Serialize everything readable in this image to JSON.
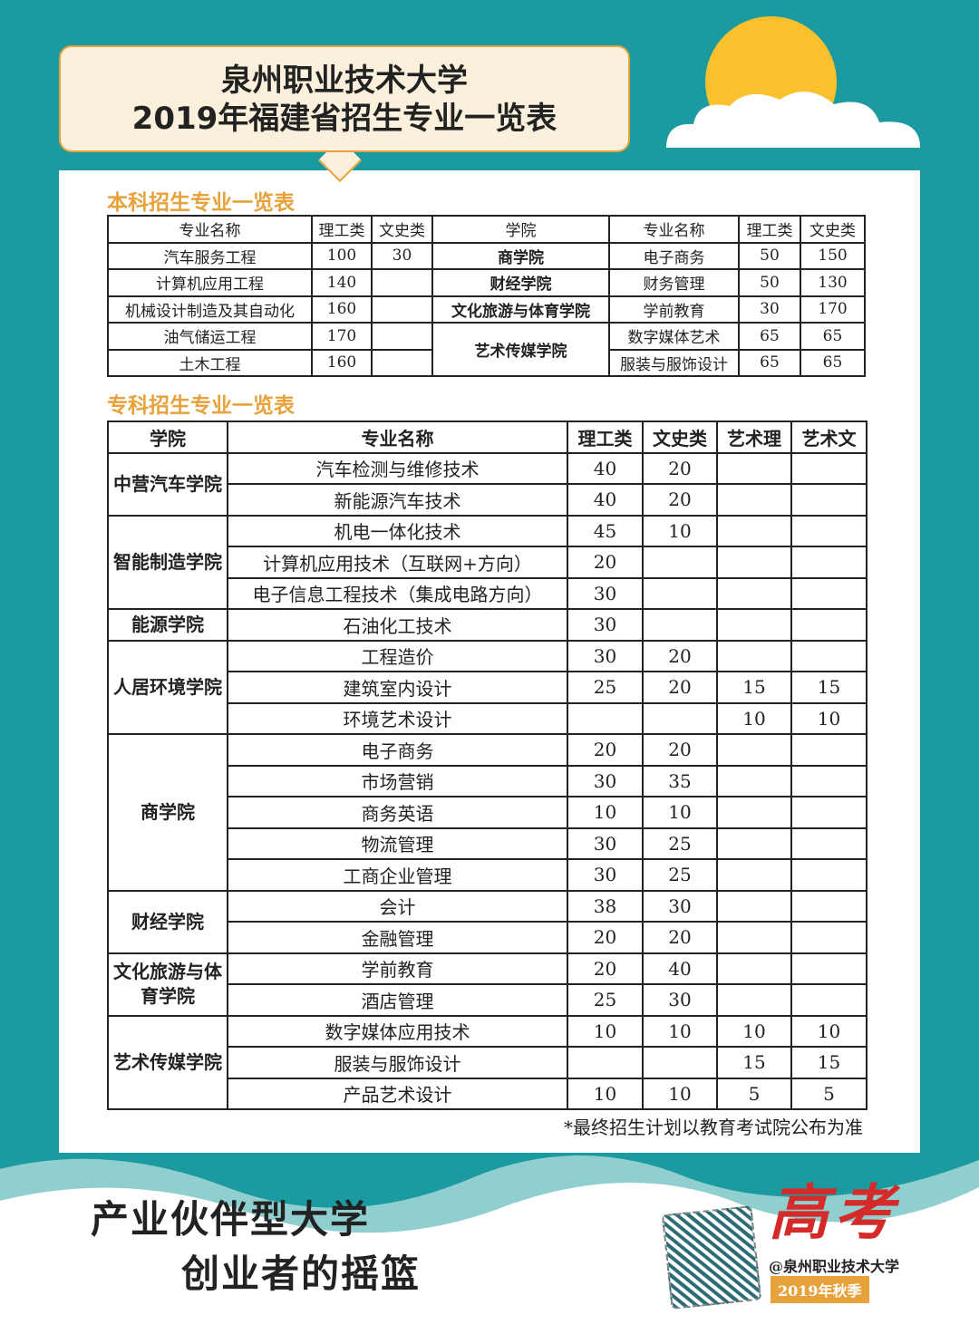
{
  "title": {
    "line1": "泉州职业技术大学",
    "line2": "2019年福建省招生专业一览表"
  },
  "undergrad": {
    "heading": "本科招生专业一览表",
    "headers": [
      "专业名称",
      "理工类",
      "文史类",
      "学院",
      "专业名称",
      "理工类",
      "文史类"
    ],
    "left_rows": [
      [
        "汽车服务工程",
        "100",
        "30"
      ],
      [
        "计算机应用工程",
        "140",
        ""
      ],
      [
        "机械设计制造及其自动化",
        "160",
        ""
      ],
      [
        "油气储运工程",
        "170",
        ""
      ],
      [
        "土木工程",
        "160",
        ""
      ]
    ],
    "right_groups": [
      {
        "college": "商学院",
        "rows": [
          [
            "电子商务",
            "50",
            "150"
          ]
        ]
      },
      {
        "college": "财经学院",
        "rows": [
          [
            "财务管理",
            "50",
            "130"
          ]
        ]
      },
      {
        "college": "文化旅游与体育学院",
        "rows": [
          [
            "学前教育",
            "30",
            "170"
          ]
        ]
      },
      {
        "college": "艺术传媒学院",
        "rows": [
          [
            "数字媒体艺术",
            "65",
            "65"
          ],
          [
            "服装与服饰设计",
            "65",
            "65"
          ]
        ]
      }
    ]
  },
  "vocational": {
    "heading": "专科招生专业一览表",
    "headers": [
      "学院",
      "专业名称",
      "理工类",
      "文史类",
      "艺术理",
      "艺术文"
    ],
    "groups": [
      {
        "college": "中营汽车学院",
        "rows": [
          [
            "汽车检测与维修技术",
            "40",
            "20",
            "",
            ""
          ],
          [
            "新能源汽车技术",
            "40",
            "20",
            "",
            ""
          ]
        ]
      },
      {
        "college": "智能制造学院",
        "rows": [
          [
            "机电一体化技术",
            "45",
            "10",
            "",
            ""
          ],
          [
            "计算机应用技术（互联网+方向）",
            "20",
            "",
            "",
            ""
          ],
          [
            "电子信息工程技术（集成电路方向）",
            "30",
            "",
            "",
            ""
          ]
        ]
      },
      {
        "college": "能源学院",
        "rows": [
          [
            "石油化工技术",
            "30",
            "",
            "",
            ""
          ]
        ]
      },
      {
        "college": "人居环境学院",
        "rows": [
          [
            "工程造价",
            "30",
            "20",
            "",
            ""
          ],
          [
            "建筑室内设计",
            "25",
            "20",
            "15",
            "15"
          ],
          [
            "环境艺术设计",
            "",
            "",
            "10",
            "10"
          ]
        ]
      },
      {
        "college": "商学院",
        "rows": [
          [
            "电子商务",
            "20",
            "20",
            "",
            ""
          ],
          [
            "市场营销",
            "30",
            "35",
            "",
            ""
          ],
          [
            "商务英语",
            "10",
            "10",
            "",
            ""
          ],
          [
            "物流管理",
            "30",
            "25",
            "",
            ""
          ],
          [
            "工商企业管理",
            "30",
            "25",
            "",
            ""
          ]
        ]
      },
      {
        "college": "财经学院",
        "rows": [
          [
            "会计",
            "38",
            "30",
            "",
            ""
          ],
          [
            "金融管理",
            "20",
            "20",
            "",
            ""
          ]
        ]
      },
      {
        "college": "文化旅游与体育学院",
        "rows": [
          [
            "学前教育",
            "20",
            "40",
            "",
            ""
          ],
          [
            "酒店管理",
            "25",
            "30",
            "",
            ""
          ]
        ]
      },
      {
        "college": "艺术传媒学院",
        "rows": [
          [
            "数字媒体应用技术",
            "10",
            "10",
            "10",
            "10"
          ],
          [
            "服装与服饰设计",
            "",
            "",
            "15",
            "15"
          ],
          [
            "产品艺术设计",
            "10",
            "10",
            "5",
            "5"
          ]
        ]
      }
    ],
    "note": "*最终招生计划以教育考试院公布为准"
  },
  "footer": {
    "slogan1": "产业伙伴型大学",
    "slogan2": "创业者的摇篮",
    "gaokao": "高考",
    "account": "@泉州职业技术大学",
    "season": "2019年秋季"
  },
  "colors": {
    "background": "#1b9aa0",
    "accent": "#e8a23c",
    "sun": "#fbc02d",
    "gaokao": "#d42a2a"
  }
}
